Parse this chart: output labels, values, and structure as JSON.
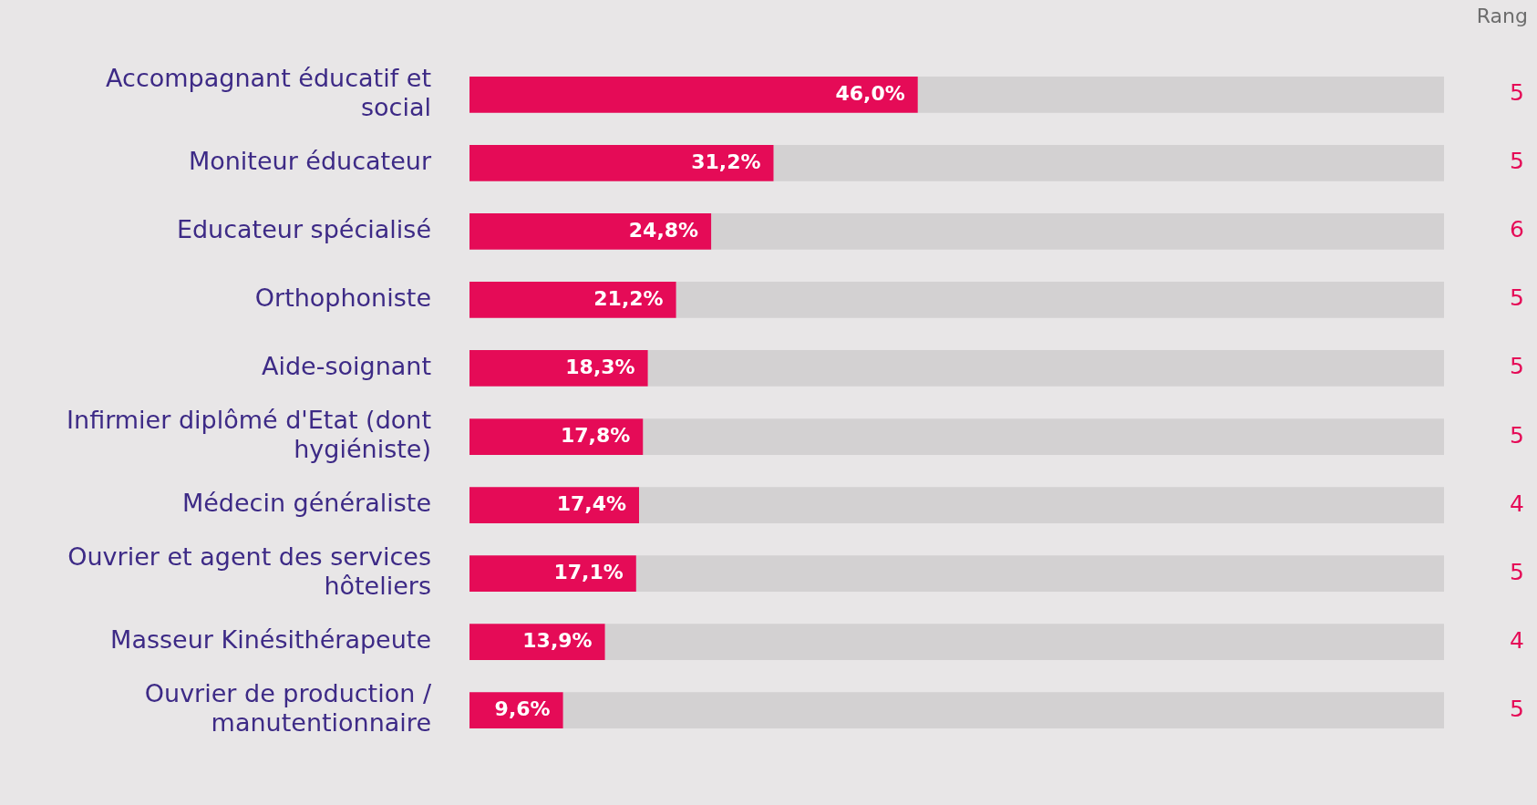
{
  "chart_data": {
    "type": "bar",
    "orientation": "horizontal",
    "categories": [
      "Accompagnant éducatif et social",
      "Moniteur éducateur",
      "Educateur spécialisé",
      "Orthophoniste",
      "Aide-soignant",
      "Infirmier diplômé d'Etat (dont hygiéniste)",
      "Médecin généraliste",
      "Ouvrier et agent des services hôteliers",
      "Masseur Kinésithérapeute",
      "Ouvrier de production / manutentionnaire"
    ],
    "series": [
      {
        "color": "#e50b57",
        "values": [
          46.0,
          31.2,
          24.8,
          21.2,
          18.3,
          17.8,
          17.4,
          17.1,
          13.9,
          9.6
        ],
        "value_labels": [
          "46,0%",
          "31,2%",
          "24,8%",
          "21,2%",
          "18,3%",
          "17,8%",
          "17,4%",
          "17,1%",
          "13,9%",
          "9,6%"
        ]
      },
      {
        "color": "#d3d1d2",
        "values": [
          54.0,
          68.8,
          75.2,
          78.8,
          81.7,
          82.2,
          82.6,
          82.9,
          86.1,
          90.4
        ]
      }
    ],
    "stacked": true,
    "xlim": [
      0,
      100
    ],
    "tick_labels": "y",
    "legend": false,
    "annotations": [
      "Rang",
      "5",
      "5",
      "6",
      "5",
      "5",
      "5",
      "4",
      "5",
      "4",
      "5"
    ]
  }
}
